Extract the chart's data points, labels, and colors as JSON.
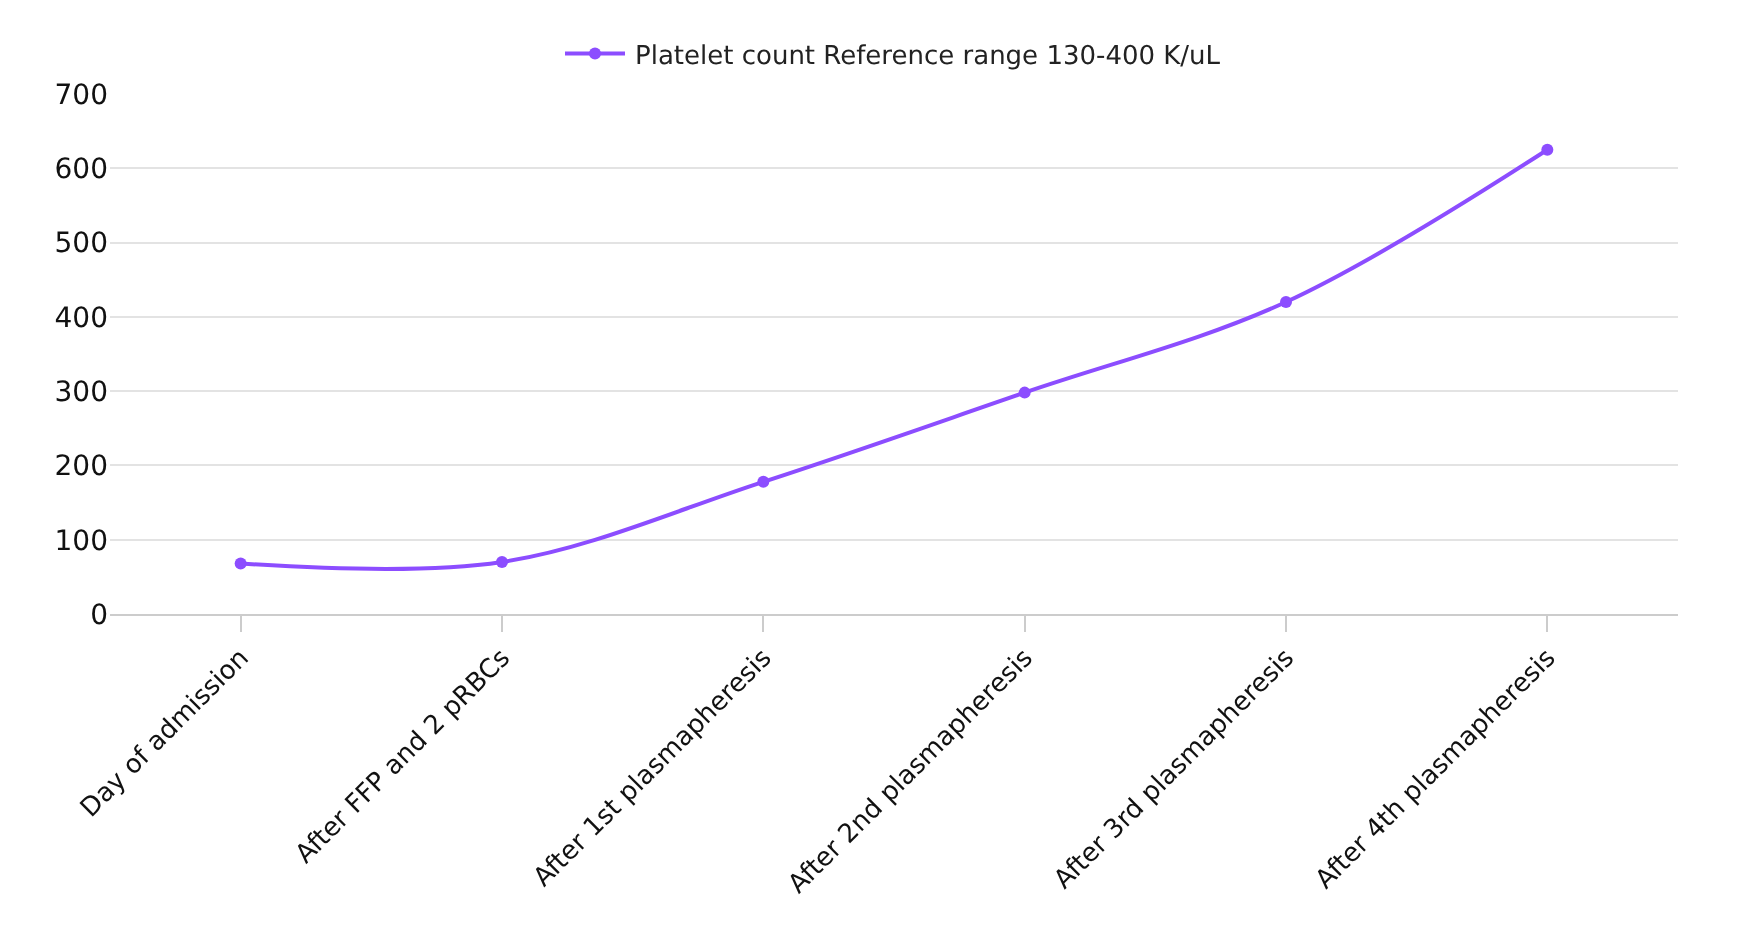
{
  "chart_data": {
    "type": "line",
    "categories": [
      "Day of admission",
      "After FFP and 2 pRBCs",
      "After 1st plasmapheresis",
      "After 2nd plasmapheresis",
      "After 3rd plasmapheresis",
      "After 4th plasmapheresis"
    ],
    "series": [
      {
        "name": "Platelet count Reference range 130-400 K/uL",
        "color": "#8c4dff",
        "values": [
          68,
          70,
          178,
          298,
          420,
          625
        ]
      }
    ],
    "ylim": [
      0,
      700
    ],
    "yticks": [
      0,
      100,
      200,
      300,
      400,
      500,
      600,
      700
    ],
    "grid": "y",
    "legend": "top",
    "marker": "circle",
    "line_style": "solid"
  }
}
